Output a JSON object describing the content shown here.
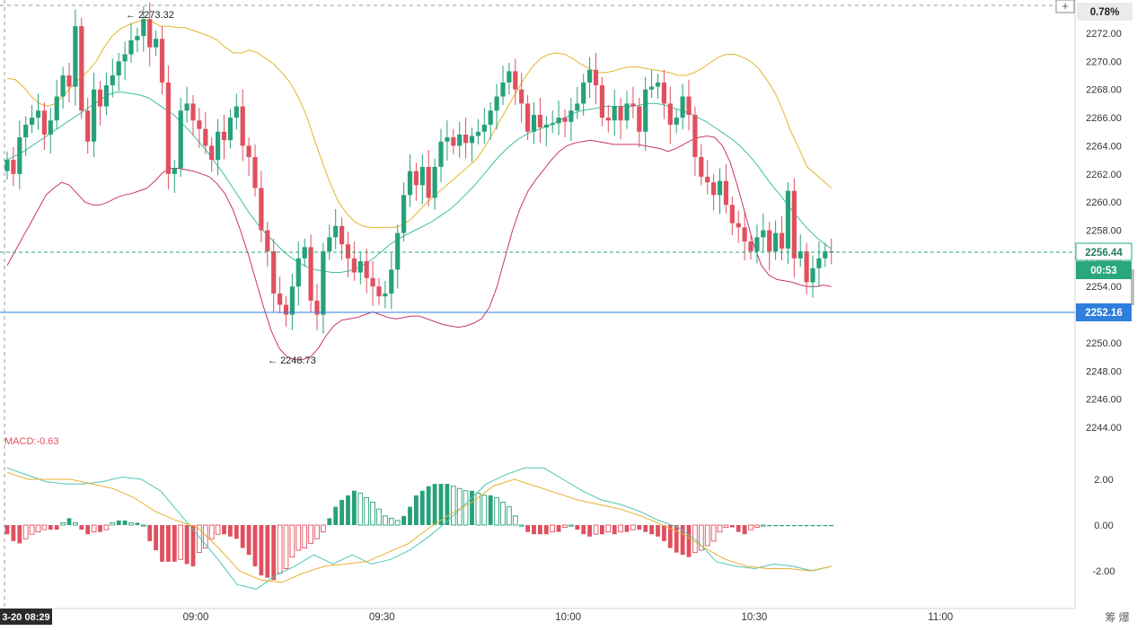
{
  "header": {
    "change_pct": "0.78%",
    "add_icon": "plus-icon"
  },
  "price_axis": {
    "ticks": [
      "2272.00",
      "2270.00",
      "2268.00",
      "2266.00",
      "2264.00",
      "2262.00",
      "2260.00",
      "2258.00",
      "2256.00",
      "2254.00",
      "2250.00",
      "2248.00",
      "2246.00",
      "2244.00"
    ],
    "current_price": "2256.44",
    "countdown": "00:53",
    "line_price": "2252.16",
    "current_color": "#2aa77b",
    "line_color": "#2f7fdc"
  },
  "annotations": {
    "high": "2273.32",
    "low": "2248.73"
  },
  "macd_panel": {
    "label": "MACD:-0.63",
    "ticks": [
      "2.00",
      "0.00",
      "-2.00"
    ]
  },
  "time_axis": {
    "current_label": "3-20 08:29",
    "ticks": [
      "09:00",
      "09:30",
      "10:00",
      "10:30",
      "11:00"
    ],
    "corner_glyphs": "筹  爆"
  },
  "colors": {
    "up": "#26a17b",
    "down": "#e0505f",
    "upper_band": "#e2b72c",
    "mid_band": "#3fbfa3",
    "lower_band": "#c8366a",
    "dif": "#4fc7b5",
    "dea": "#e8b230"
  },
  "chart_data": [
    {
      "type": "candlestick",
      "interval_minutes": 1,
      "x_start": "08:29",
      "x_ticks": [
        "09:00",
        "09:30",
        "10:00",
        "10:30",
        "11:00"
      ],
      "ylim": [
        2243,
        2273.5
      ],
      "indicators": [
        "bollinger upper",
        "bollinger middle",
        "bollinger lower"
      ],
      "annotations": [
        {
          "label": "2273.32",
          "type": "high"
        },
        {
          "label": "2248.73",
          "type": "low"
        }
      ],
      "horizontal_line": 2252.16,
      "last_price": 2256.44,
      "closes": [
        2263.0,
        2262.0,
        2264.6,
        2265.5,
        2266.0,
        2266.5,
        2264.8,
        2265.8,
        2267.5,
        2269.0,
        2268.2,
        2272.5,
        2266.5,
        2264.3,
        2268.0,
        2266.8,
        2268.3,
        2269.0,
        2270.0,
        2270.5,
        2271.5,
        2271.8,
        2273.0,
        2271.0,
        2271.6,
        2268.5,
        2262.0,
        2262.4,
        2266.5,
        2267.0,
        2265.8,
        2265.2,
        2264.0,
        2263.0,
        2265.0,
        2264.4,
        2266.0,
        2266.8,
        2264.0,
        2263.2,
        2261.0,
        2258.0,
        2256.5,
        2253.5,
        2252.7,
        2252.0,
        2254.0,
        2256.0,
        2256.8,
        2253.0,
        2252.0,
        2256.5,
        2257.5,
        2258.3,
        2257.0,
        2256.0,
        2255.0,
        2255.8,
        2254.6,
        2254.0,
        2253.3,
        2253.5,
        2255.2,
        2257.8,
        2260.5,
        2262.2,
        2261.2,
        2262.5,
        2260.3,
        2262.5,
        2264.3,
        2264.6,
        2264.0,
        2264.8,
        2264.2,
        2264.7,
        2265.0,
        2265.5,
        2266.5,
        2267.5,
        2268.5,
        2269.3,
        2268.0,
        2267.0,
        2265.0,
        2266.2,
        2265.3,
        2265.5,
        2265.6,
        2266.0,
        2265.7,
        2266.5,
        2267.0,
        2268.5,
        2269.4,
        2268.3,
        2266.0,
        2265.8,
        2266.8,
        2265.8,
        2267.0,
        2266.8,
        2265.0,
        2268.0,
        2268.2,
        2268.5,
        2267.0,
        2265.5,
        2266.0,
        2267.5,
        2266.2,
        2263.2,
        2261.8,
        2261.4,
        2260.5,
        2261.5,
        2259.8,
        2258.5,
        2258.2,
        2257.2,
        2256.5,
        2257.5,
        2258.0,
        2256.5,
        2257.8,
        2256.7,
        2260.8,
        2256.0,
        2256.5,
        2254.3,
        2255.3,
        2256.0,
        2256.5,
        2256.44
      ],
      "upper_band": [
        2268.8,
        2268.7,
        2268.2,
        2267.5,
        2267.0,
        2266.8,
        2267.0,
        2267.6,
        2268.2,
        2268.8,
        2269.3,
        2270.0,
        2271.0,
        2271.8,
        2272.3,
        2272.6,
        2272.8,
        2273.0,
        2272.8,
        2272.5,
        2272.5,
        2272.4,
        2272.4,
        2272.2,
        2272.0,
        2271.8,
        2271.5,
        2271.0,
        2270.6,
        2270.6,
        2270.8,
        2270.6,
        2270.2,
        2269.8,
        2269.2,
        2268.5,
        2267.5,
        2266.2,
        2264.5,
        2262.8,
        2261.3,
        2260.0,
        2259.2,
        2258.6,
        2258.3,
        2258.2,
        2258.2,
        2258.2,
        2258.2,
        2258.4,
        2258.8,
        2259.4,
        2260.0,
        2260.5,
        2261.0,
        2261.5,
        2262.0,
        2262.5,
        2263.0,
        2263.8,
        2264.8,
        2265.8,
        2266.8,
        2267.8,
        2268.8,
        2269.6,
        2270.2,
        2270.5,
        2270.6,
        2270.5,
        2270.2,
        2269.8,
        2269.5,
        2269.2,
        2269.2,
        2269.3,
        2269.5,
        2269.6,
        2269.6,
        2269.5,
        2269.4,
        2269.3,
        2269.2,
        2269.0,
        2269.0,
        2269.2,
        2269.5,
        2269.9,
        2270.3,
        2270.5,
        2270.5,
        2270.3,
        2270.0,
        2269.5,
        2268.7,
        2267.8,
        2266.5,
        2265.0,
        2263.8,
        2262.5,
        2262.0,
        2261.5,
        2261.0
      ],
      "middle_band": [
        2263.0,
        2263.3,
        2263.6,
        2264.0,
        2264.4,
        2264.8,
        2265.2,
        2265.6,
        2266.0,
        2266.4,
        2266.8,
        2267.2,
        2267.6,
        2267.8,
        2267.8,
        2267.7,
        2267.6,
        2267.4,
        2267.0,
        2266.6,
        2266.2,
        2265.6,
        2265.0,
        2264.3,
        2263.6,
        2262.8,
        2262.0,
        2261.1,
        2260.2,
        2259.3,
        2258.5,
        2257.8,
        2257.2,
        2256.6,
        2256.1,
        2255.7,
        2255.4,
        2255.2,
        2255.1,
        2255.0,
        2255.0,
        2255.1,
        2255.3,
        2255.6,
        2256.0,
        2256.5,
        2257.0,
        2257.4,
        2257.7,
        2258.0,
        2258.3,
        2258.6,
        2259.0,
        2259.4,
        2259.9,
        2260.5,
        2261.1,
        2261.8,
        2262.5,
        2263.2,
        2263.8,
        2264.3,
        2264.7,
        2265.0,
        2265.2,
        2265.4,
        2265.7,
        2266.0,
        2266.3,
        2266.5,
        2266.6,
        2266.7,
        2266.8,
        2266.8,
        2266.8,
        2266.8,
        2266.9,
        2267.0,
        2267.0,
        2266.9,
        2266.7,
        2266.5,
        2266.3,
        2266.0,
        2265.7,
        2265.3,
        2264.9,
        2264.5,
        2264.0,
        2263.4,
        2262.7,
        2261.9,
        2261.1,
        2260.4,
        2259.6,
        2258.9,
        2258.2,
        2257.6,
        2257.1,
        2256.7
      ],
      "lower_band": [
        2255.5,
        2256.5,
        2257.5,
        2258.5,
        2259.5,
        2260.5,
        2261.0,
        2261.4,
        2261.2,
        2260.6,
        2260.0,
        2259.8,
        2259.8,
        2260.0,
        2260.3,
        2260.5,
        2260.6,
        2260.8,
        2261.0,
        2261.5,
        2262.1,
        2262.4,
        2262.4,
        2262.3,
        2262.2,
        2262.0,
        2261.8,
        2261.3,
        2260.6,
        2259.5,
        2258.0,
        2256.3,
        2254.4,
        2252.5,
        2250.8,
        2249.6,
        2249.0,
        2248.8,
        2248.8,
        2249.0,
        2249.6,
        2250.5,
        2251.2,
        2251.6,
        2251.7,
        2251.8,
        2252.0,
        2252.2,
        2252.0,
        2251.8,
        2251.7,
        2251.8,
        2251.9,
        2251.9,
        2251.7,
        2251.5,
        2251.3,
        2251.2,
        2251.1,
        2251.2,
        2251.4,
        2251.7,
        2252.5,
        2254.0,
        2256.0,
        2258.0,
        2259.6,
        2260.8,
        2261.6,
        2262.3,
        2263.0,
        2263.6,
        2264.0,
        2264.2,
        2264.3,
        2264.4,
        2264.3,
        2264.2,
        2264.1,
        2264.1,
        2264.1,
        2264.1,
        2264.0,
        2263.9,
        2263.8,
        2263.6,
        2263.8,
        2264.1,
        2264.4,
        2264.6,
        2264.7,
        2264.6,
        2264.0,
        2262.8,
        2261.0,
        2259.0,
        2257.0,
        2255.5,
        2254.8,
        2254.5,
        2254.4,
        2254.3,
        2254.1,
        2254.0,
        2254.0,
        2254.1,
        2254.0
      ]
    },
    {
      "type": "bar",
      "title": "MACD:-0.63",
      "ylim": [
        -2.8,
        2.8
      ],
      "y_ticks": [
        2.0,
        0.0,
        -2.0
      ],
      "histogram": [
        -0.4,
        -0.7,
        -0.8,
        -0.6,
        -0.4,
        -0.3,
        -0.2,
        -0.2,
        -0.2,
        0.1,
        0.3,
        0.1,
        -0.2,
        -0.4,
        -0.3,
        -0.3,
        -0.2,
        0.1,
        0.2,
        0.2,
        0.1,
        0.1,
        0.0,
        -0.7,
        -1.1,
        -1.6,
        -1.6,
        -1.6,
        -1.5,
        -1.7,
        -1.8,
        -1.2,
        -1.0,
        -0.6,
        -0.4,
        -0.4,
        -0.5,
        -0.6,
        -1.0,
        -1.3,
        -1.8,
        -2.2,
        -2.3,
        -2.4,
        -2.1,
        -1.9,
        -1.4,
        -1.1,
        -1.0,
        -0.8,
        -0.6,
        -0.3,
        0.3,
        0.8,
        1.1,
        1.3,
        1.5,
        1.4,
        1.2,
        1.0,
        0.7,
        0.4,
        0.3,
        0.2,
        0.4,
        0.8,
        1.3,
        1.5,
        1.7,
        1.8,
        1.8,
        1.8,
        1.7,
        1.6,
        1.5,
        1.5,
        1.4,
        1.3,
        1.3,
        1.2,
        1.0,
        0.8,
        0.4,
        0.0,
        -0.3,
        -0.4,
        -0.4,
        -0.4,
        -0.3,
        -0.3,
        -0.1,
        0.0,
        -0.2,
        -0.4,
        -0.5,
        -0.4,
        -0.4,
        -0.3,
        -0.4,
        -0.3,
        -0.3,
        -0.2,
        -0.2,
        -0.3,
        -0.4,
        -0.5,
        -0.7,
        -1.0,
        -1.2,
        -1.3,
        -1.4,
        -1.2,
        -1.1,
        -0.9,
        -0.7,
        -0.3,
        -0.1,
        -0.1,
        -0.3,
        -0.4,
        -0.2,
        -0.1,
        0.0,
        0.0,
        0.0,
        0.0,
        0.0,
        0.0,
        0.0,
        0.0,
        0.0,
        0.0,
        0.0,
        0.0,
        0.0,
        0.0
      ],
      "dif": [
        2.5,
        2.2,
        1.9,
        1.8,
        1.8,
        1.9,
        2.1,
        2.0,
        1.5,
        0.5,
        -0.5,
        -1.5,
        -2.6,
        -2.8,
        -2.2,
        -1.8,
        -1.3,
        -1.7,
        -1.3,
        -1.7,
        -1.5,
        -1.1,
        -0.5,
        0.2,
        1.0,
        1.8,
        2.2,
        2.5,
        2.5,
        2.0,
        1.5,
        1.1,
        0.9,
        0.6,
        0.2,
        -0.1,
        -0.7,
        -1.6,
        -1.8,
        -1.9,
        -1.7,
        -1.8,
        -2.0,
        -1.8
      ],
      "dea": [
        2.3,
        2.0,
        2.0,
        2.0,
        1.8,
        1.6,
        1.2,
        0.6,
        0.2,
        -0.1,
        -1.0,
        -2.0,
        -2.4,
        -2.5,
        -2.1,
        -1.8,
        -1.7,
        -1.6,
        -1.2,
        -0.8,
        -0.1,
        0.5,
        1.0,
        1.7,
        2.0,
        1.7,
        1.4,
        1.1,
        0.9,
        0.7,
        0.4,
        0.0,
        -0.4,
        -1.0,
        -1.5,
        -1.8,
        -1.9,
        -1.9,
        -2.0,
        -1.8
      ]
    }
  ]
}
